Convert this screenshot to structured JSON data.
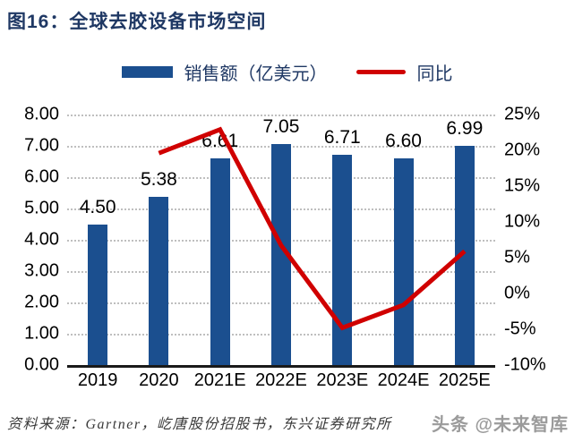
{
  "title": "图16：全球去胶设备市场空间",
  "legend": {
    "bar_label": "销售额（亿美元）",
    "line_label": "同比"
  },
  "footer": {
    "source": "资料来源：Gartner，屹唐股份招股书，东兴证券研究所",
    "watermark": "头条 @未来智库"
  },
  "colors": {
    "bar": "#1B4F8F",
    "line": "#D00000",
    "title": "#1F3864",
    "gridline": "#BFBFBF",
    "axis_line": "#1A1A1A",
    "watermark": "#9B9B9B"
  },
  "chart_data": {
    "type": "bar+line",
    "title": "图16：全球去胶设备市场空间",
    "categories": [
      "2019",
      "2020",
      "2021E",
      "2022E",
      "2023E",
      "2024E",
      "2025E"
    ],
    "series": [
      {
        "name": "销售额（亿美元）",
        "type": "bar",
        "axis": "left",
        "values": [
          4.5,
          5.38,
          6.61,
          7.05,
          6.71,
          6.6,
          6.99
        ],
        "labels": [
          "4.50",
          "5.38",
          "6.61",
          "7.05",
          "6.71",
          "6.60",
          "6.99"
        ]
      },
      {
        "name": "同比",
        "type": "line",
        "axis": "right",
        "values": [
          null,
          19.6,
          22.9,
          6.7,
          -4.8,
          -1.6,
          5.9
        ]
      }
    ],
    "left_axis": {
      "min": 0,
      "max": 8,
      "ticks": [
        "8.00",
        "7.00",
        "6.00",
        "5.00",
        "4.00",
        "3.00",
        "2.00",
        "1.00",
        "0.00"
      ]
    },
    "right_axis": {
      "min": -10,
      "max": 25,
      "ticks": [
        "25%",
        "20%",
        "15%",
        "10%",
        "5%",
        "0%",
        "-5%",
        "-10%"
      ]
    },
    "grid": "horizontal-dotted",
    "legend_position": "top"
  }
}
